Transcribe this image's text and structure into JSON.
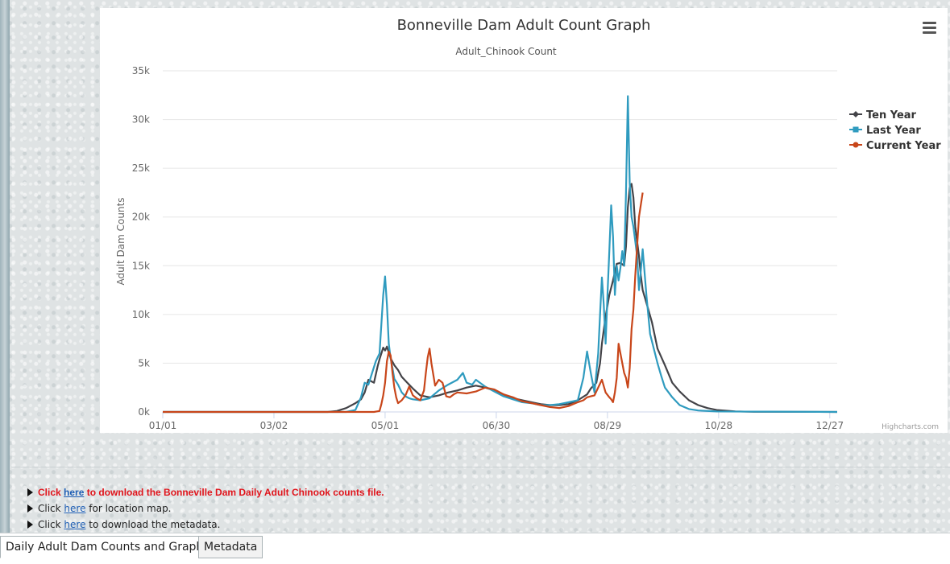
{
  "chart_data": {
    "type": "line",
    "title": "Bonneville Dam Adult Count Graph",
    "subtitle": "Adult_Chinook Count",
    "ylabel": "Adult Dam Counts",
    "xlabel": "",
    "ylim": [
      0,
      35000
    ],
    "xlim_day": [
      1,
      365
    ],
    "y_ticks": [
      0,
      5000,
      10000,
      15000,
      20000,
      25000,
      30000,
      35000
    ],
    "y_tick_labels": [
      "0k",
      "5k",
      "10k",
      "15k",
      "20k",
      "25k",
      "30k",
      "35k"
    ],
    "x_ticks": [
      1,
      61,
      121,
      181,
      241,
      301,
      361
    ],
    "x_tick_labels": [
      "01/01",
      "03/02",
      "05/01",
      "06/30",
      "08/29",
      "10/28",
      "12/27"
    ],
    "grid": true,
    "legend_position": "right",
    "series": [
      {
        "name": "Ten Year",
        "color": "#434348",
        "marker": "diamond",
        "x": [
          1,
          60,
          90,
          95,
          100,
          105,
          108,
          110,
          112,
          115,
          117,
          118,
          120,
          121,
          122,
          124,
          126,
          128,
          130,
          133,
          136,
          140,
          145,
          150,
          155,
          160,
          165,
          170,
          175,
          180,
          185,
          190,
          195,
          200,
          205,
          210,
          215,
          220,
          225,
          230,
          232,
          235,
          237,
          238,
          240,
          242,
          244,
          246,
          248,
          250,
          251,
          252,
          253,
          254,
          255,
          256,
          257,
          258,
          259,
          260,
          262,
          265,
          268,
          272,
          276,
          280,
          285,
          290,
          295,
          300,
          310,
          320,
          365
        ],
        "y": [
          0,
          0,
          0,
          100,
          400,
          900,
          1300,
          2000,
          3300,
          3000,
          4700,
          5400,
          6600,
          6300,
          6700,
          5500,
          4800,
          4300,
          3600,
          3000,
          2400,
          1700,
          1500,
          1700,
          2000,
          2200,
          2500,
          2700,
          2500,
          2200,
          1800,
          1400,
          1200,
          1000,
          800,
          700,
          700,
          800,
          1200,
          1800,
          2400,
          3000,
          5000,
          7000,
          9800,
          12000,
          13500,
          15200,
          15300,
          15000,
          17000,
          21000,
          23000,
          23400,
          22000,
          19000,
          17500,
          16000,
          14000,
          12500,
          11200,
          9200,
          6500,
          4800,
          3000,
          2100,
          1200,
          700,
          400,
          200,
          60,
          20,
          0
        ]
      },
      {
        "name": "Last Year",
        "color": "#2f9bbf",
        "marker": "square",
        "x": [
          1,
          60,
          100,
          105,
          108,
          110,
          112,
          114,
          116,
          118,
          119,
          120,
          121,
          122,
          123,
          124,
          125,
          126,
          128,
          130,
          132,
          134,
          136,
          140,
          145,
          150,
          155,
          160,
          163,
          165,
          168,
          170,
          175,
          180,
          185,
          190,
          195,
          200,
          205,
          210,
          215,
          220,
          225,
          228,
          230,
          232,
          234,
          236,
          237,
          238,
          239,
          240,
          241,
          242,
          243,
          244,
          245,
          246,
          247,
          248,
          249,
          250,
          251,
          252,
          253,
          254,
          255,
          256,
          257,
          258,
          259,
          260,
          262,
          264,
          266,
          268,
          270,
          272,
          276,
          280,
          285,
          290,
          300,
          365
        ],
        "y": [
          0,
          0,
          0,
          200,
          1500,
          3000,
          2800,
          4000,
          5200,
          6000,
          9000,
          12000,
          13900,
          11000,
          7000,
          5500,
          4500,
          3400,
          2800,
          2000,
          1600,
          1400,
          1300,
          1200,
          1400,
          2200,
          2800,
          3300,
          4000,
          3000,
          2800,
          3300,
          2600,
          2100,
          1600,
          1300,
          1000,
          900,
          700,
          700,
          800,
          1000,
          1200,
          3500,
          6200,
          4000,
          2000,
          6000,
          10000,
          13800,
          11000,
          7000,
          12000,
          16500,
          21200,
          18000,
          12000,
          15000,
          13500,
          14800,
          16500,
          15000,
          22500,
          32400,
          23500,
          20000,
          19000,
          17500,
          16000,
          12500,
          14500,
          16700,
          12000,
          8000,
          6500,
          5000,
          3700,
          2500,
          1500,
          700,
          300,
          150,
          50,
          0
        ]
      },
      {
        "name": "Current Year",
        "color": "#c8461a",
        "marker": "circle",
        "x": [
          1,
          60,
          100,
          110,
          115,
          118,
          119,
          120,
          121,
          122,
          123,
          124,
          125,
          126,
          127,
          128,
          130,
          132,
          134,
          136,
          138,
          140,
          142,
          143,
          144,
          145,
          146,
          148,
          150,
          152,
          154,
          156,
          158,
          160,
          165,
          170,
          175,
          180,
          185,
          190,
          195,
          200,
          205,
          210,
          215,
          220,
          225,
          228,
          230,
          232,
          234,
          236,
          238,
          240,
          242,
          243,
          244,
          245,
          246,
          247,
          248,
          250,
          251,
          252,
          253,
          254,
          255,
          256,
          258,
          260
        ],
        "y": [
          0,
          0,
          0,
          0,
          0,
          100,
          800,
          1700,
          3000,
          5200,
          6200,
          5800,
          4000,
          2500,
          1500,
          900,
          1200,
          1700,
          2600,
          1700,
          1400,
          1200,
          2200,
          4000,
          5600,
          6500,
          5000,
          2700,
          3300,
          3000,
          1600,
          1500,
          1800,
          2000,
          1900,
          2100,
          2500,
          2300,
          1800,
          1500,
          1100,
          900,
          700,
          500,
          400,
          600,
          1000,
          1200,
          1500,
          1600,
          1700,
          2500,
          3300,
          2000,
          1500,
          1300,
          1000,
          2000,
          3500,
          7000,
          6000,
          4000,
          3500,
          2500,
          4500,
          8500,
          10500,
          14000,
          20000,
          22500
        ]
      }
    ]
  },
  "chart_extra": {
    "credit": "Highcharts.com",
    "menu_icon": "hamburger-menu-icon"
  },
  "links": {
    "row1_prefix": "Click ",
    "row1_link": "here",
    "row1_suffix": " to download the Bonneville Dam Daily Adult Chinook counts file.",
    "row2_prefix": "Click ",
    "row2_link": "here",
    "row2_suffix": " for location map.",
    "row3_prefix": "Click ",
    "row3_link": "here",
    "row3_suffix": " to download the metadata."
  },
  "tabs": {
    "active": "Daily Adult Dam Counts and Graph",
    "inactive": "Metadata"
  }
}
